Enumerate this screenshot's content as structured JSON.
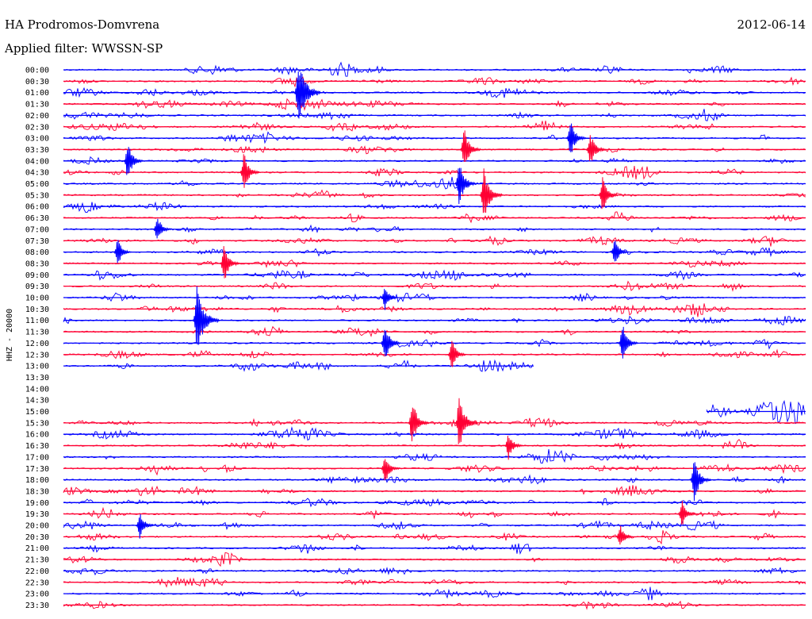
{
  "header": {
    "station": "HA Prodromos-Domvrena",
    "date": "2012-06-14",
    "filter": "Applied filter: WWSSN-SP"
  },
  "chart_data": {
    "type": "line",
    "title": "HA Prodromos-Domvrena",
    "subtitle": "Applied filter: WWSSN-SP",
    "date": "2012-06-14",
    "ylabel": "HHZ - 20000",
    "colors": [
      "#0000ff",
      "#ff0033"
    ],
    "grid": false,
    "rows": [
      {
        "label": "00:00",
        "data": true
      },
      {
        "label": "00:30",
        "data": true
      },
      {
        "label": "01:00",
        "data": true
      },
      {
        "label": "01:30",
        "data": true
      },
      {
        "label": "02:00",
        "data": true
      },
      {
        "label": "02:30",
        "data": true
      },
      {
        "label": "03:00",
        "data": true
      },
      {
        "label": "03:30",
        "data": true
      },
      {
        "label": "04:00",
        "data": true
      },
      {
        "label": "04:30",
        "data": true
      },
      {
        "label": "05:00",
        "data": true
      },
      {
        "label": "05:30",
        "data": true
      },
      {
        "label": "06:00",
        "data": true
      },
      {
        "label": "06:30",
        "data": true
      },
      {
        "label": "07:00",
        "data": true
      },
      {
        "label": "07:30",
        "data": true
      },
      {
        "label": "08:00",
        "data": true
      },
      {
        "label": "08:30",
        "data": true
      },
      {
        "label": "09:00",
        "data": true
      },
      {
        "label": "09:30",
        "data": true
      },
      {
        "label": "10:00",
        "data": true
      },
      {
        "label": "10:30",
        "data": true
      },
      {
        "label": "11:00",
        "data": true
      },
      {
        "label": "11:30",
        "data": true
      },
      {
        "label": "12:00",
        "data": true
      },
      {
        "label": "12:30",
        "data": true
      },
      {
        "label": "13:00",
        "data": true,
        "end_min": 19
      },
      {
        "label": "13:30",
        "data": false
      },
      {
        "label": "14:00",
        "data": false
      },
      {
        "label": "14:30",
        "data": false
      },
      {
        "label": "15:00",
        "data": true,
        "start_min": 26
      },
      {
        "label": "15:30",
        "data": true
      },
      {
        "label": "16:00",
        "data": true
      },
      {
        "label": "16:30",
        "data": true
      },
      {
        "label": "17:00",
        "data": true
      },
      {
        "label": "17:30",
        "data": true
      },
      {
        "label": "18:00",
        "data": true
      },
      {
        "label": "18:30",
        "data": true
      },
      {
        "label": "19:00",
        "data": true
      },
      {
        "label": "19:30",
        "data": true
      },
      {
        "label": "20:00",
        "data": true
      },
      {
        "label": "20:30",
        "data": true
      },
      {
        "label": "21:00",
        "data": true
      },
      {
        "label": "21:30",
        "data": true
      },
      {
        "label": "22:00",
        "data": true
      },
      {
        "label": "22:30",
        "data": true
      },
      {
        "label": "23:00",
        "data": true
      },
      {
        "label": "23:30",
        "data": true
      }
    ],
    "events": [
      {
        "row": 2,
        "min": 9.5,
        "amp": 1.0
      },
      {
        "row": 6,
        "min": 20.5,
        "amp": 0.55
      },
      {
        "row": 7,
        "min": 16.2,
        "amp": 0.6
      },
      {
        "row": 7,
        "min": 21.3,
        "amp": 0.5
      },
      {
        "row": 8,
        "min": 2.6,
        "amp": 0.55
      },
      {
        "row": 9,
        "min": 7.3,
        "amp": 0.55
      },
      {
        "row": 10,
        "min": 16.0,
        "amp": 0.65
      },
      {
        "row": 11,
        "min": 17.0,
        "amp": 0.75
      },
      {
        "row": 11,
        "min": 21.8,
        "amp": 0.5
      },
      {
        "row": 14,
        "min": 3.8,
        "amp": 0.4
      },
      {
        "row": 16,
        "min": 2.2,
        "amp": 0.4
      },
      {
        "row": 16,
        "min": 22.3,
        "amp": 0.4
      },
      {
        "row": 17,
        "min": 6.5,
        "amp": 0.55
      },
      {
        "row": 20,
        "min": 13.0,
        "amp": 0.35
      },
      {
        "row": 22,
        "min": 5.4,
        "amp": 1.0
      },
      {
        "row": 24,
        "min": 13.0,
        "amp": 0.55
      },
      {
        "row": 24,
        "min": 22.6,
        "amp": 0.55
      },
      {
        "row": 25,
        "min": 15.7,
        "amp": 0.45
      },
      {
        "row": 31,
        "min": 14.1,
        "amp": 0.65
      },
      {
        "row": 31,
        "min": 16.0,
        "amp": 0.75
      },
      {
        "row": 33,
        "min": 18.0,
        "amp": 0.4
      },
      {
        "row": 35,
        "min": 13.0,
        "amp": 0.45
      },
      {
        "row": 36,
        "min": 25.5,
        "amp": 0.6
      },
      {
        "row": 39,
        "min": 25.0,
        "amp": 0.4
      },
      {
        "row": 40,
        "min": 3.1,
        "amp": 0.4
      },
      {
        "row": 41,
        "min": 22.5,
        "amp": 0.35
      }
    ]
  }
}
